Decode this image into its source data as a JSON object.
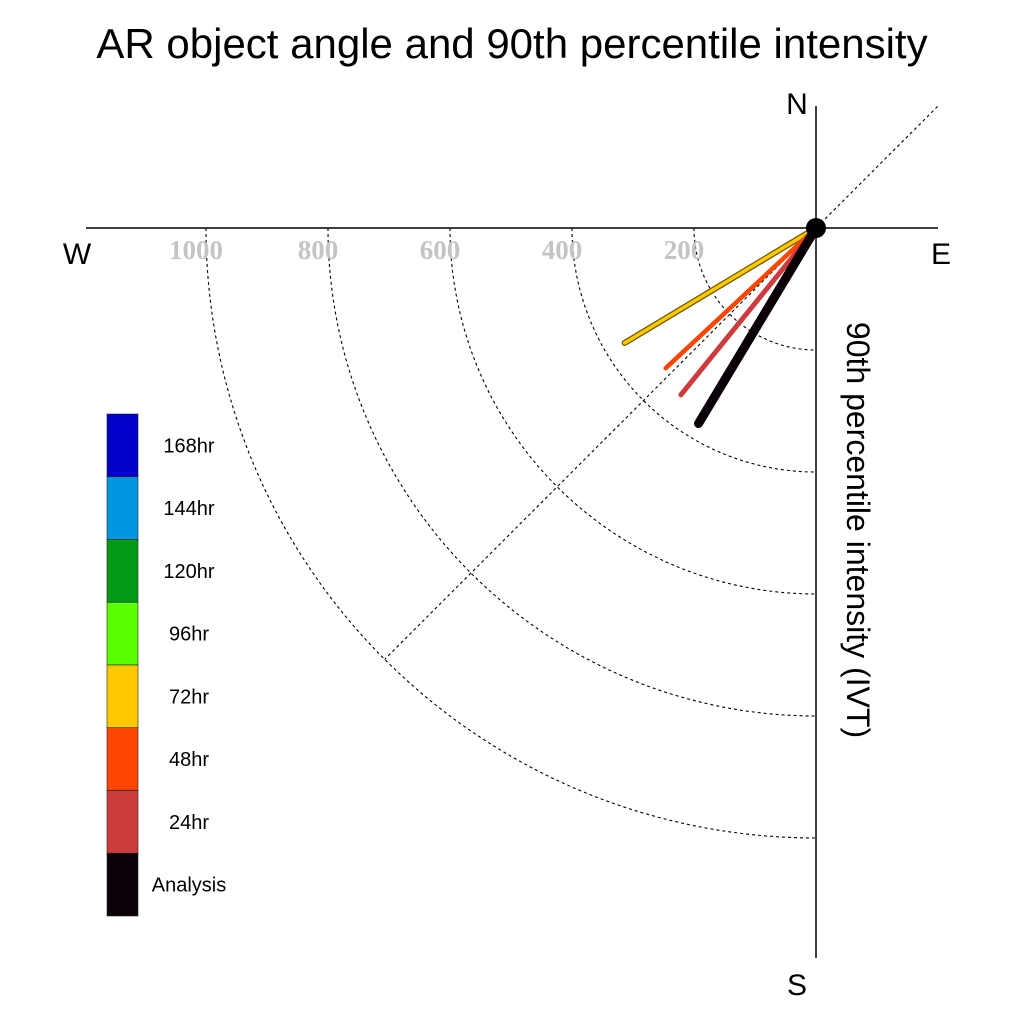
{
  "chart_data": {
    "type": "polar-vector",
    "title": "AR object angle and 90th percentile intensity",
    "ylabel": "90th percentile intensity (IVT)",
    "compass": {
      "north": "N",
      "south": "S",
      "east": "E",
      "west": "W"
    },
    "radial_ticks": [
      "1000",
      "800",
      "600",
      "400",
      "200"
    ],
    "radial_tick_values": [
      1000,
      800,
      600,
      400,
      200
    ],
    "rings": [
      200,
      400,
      600,
      800,
      1000
    ],
    "rlim": [
      0,
      1000
    ],
    "grid": true,
    "legend_position": "left",
    "legend": [
      {
        "label": "168hr",
        "color": "#0000c8"
      },
      {
        "label": "144hr",
        "color": "#0096e1"
      },
      {
        "label": "120hr",
        "color": "#009a14"
      },
      {
        "label": "96hr",
        "color": "#5aff00"
      },
      {
        "label": "72hr",
        "color": "#ffc800"
      },
      {
        "label": "48hr",
        "color": "#ff4600"
      },
      {
        "label": "24hr",
        "color": "#cd3c3c"
      },
      {
        "label": "Analysis",
        "color": "#0a0008"
      }
    ],
    "series": [
      {
        "name": "72hr",
        "color": "#ffc800",
        "angle_deg": 239,
        "intensity": 366
      },
      {
        "name": "48hr",
        "color": "#ff4600",
        "angle_deg": 227,
        "intensity": 337
      },
      {
        "name": "24hr",
        "color": "#cd3c3c",
        "angle_deg": 219,
        "intensity": 352
      },
      {
        "name": "Analysis",
        "color": "#0a0008",
        "angle_deg": 211,
        "intensity": 374
      }
    ]
  }
}
